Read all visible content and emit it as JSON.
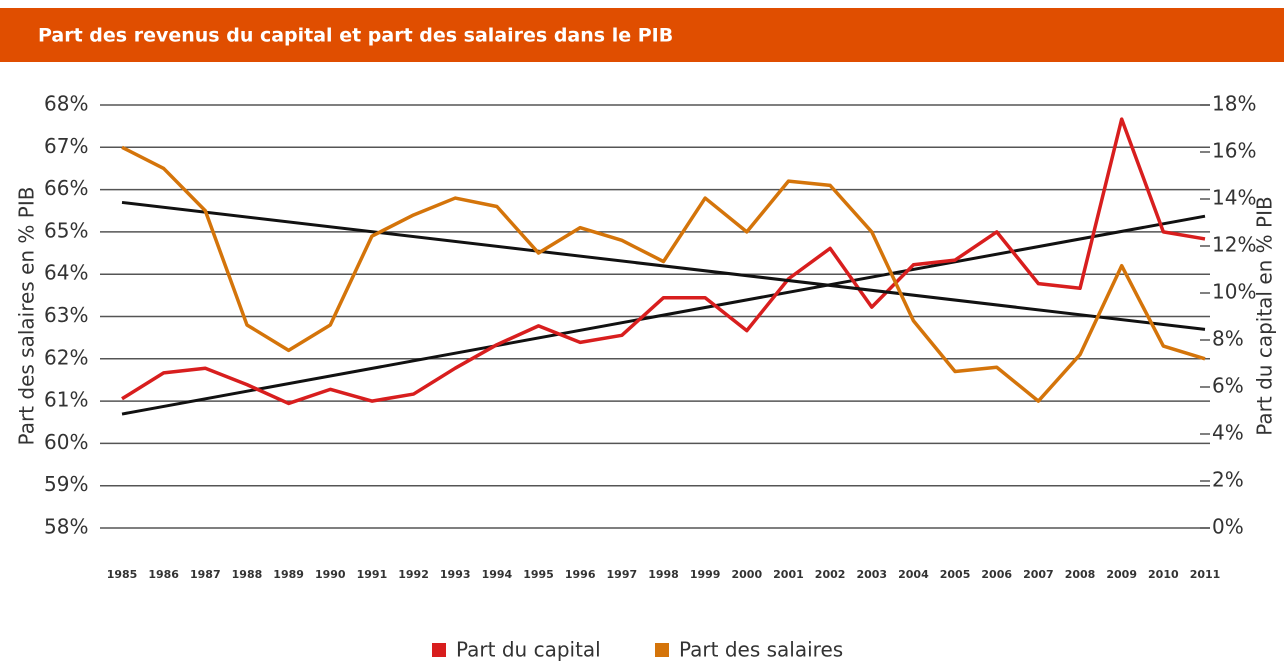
{
  "chart_data": {
    "type": "line",
    "title": "Part des revenus du capital et part des salaires dans le PIB",
    "ylabel": "Part des salaires en % PIB",
    "y2label": "Part du capital en % PIB",
    "categories": [
      "1985",
      "1986",
      "1987",
      "1988",
      "1989",
      "1990",
      "1991",
      "1992",
      "1993",
      "1994",
      "1995",
      "1996",
      "1997",
      "1998",
      "1999",
      "2000",
      "2001",
      "2002",
      "2003",
      "2004",
      "2005",
      "2006",
      "2007",
      "2008",
      "2009",
      "2010",
      "2011"
    ],
    "series": [
      {
        "name": "Part du capital",
        "color": "#d81e1e",
        "axis": "y2",
        "values": [
          5.5,
          6.6,
          6.8,
          6.1,
          5.3,
          5.9,
          5.4,
          5.7,
          6.8,
          7.8,
          8.6,
          7.9,
          8.2,
          9.8,
          9.8,
          8.4,
          10.6,
          11.9,
          9.4,
          11.2,
          11.4,
          12.6,
          10.4,
          10.2,
          17.4,
          12.6,
          12.3
        ]
      },
      {
        "name": "Part des salaires",
        "color": "#d4740a",
        "values": [
          67.0,
          66.5,
          65.5,
          62.8,
          62.2,
          62.8,
          64.9,
          65.4,
          65.8,
          65.6,
          64.5,
          65.1,
          64.8,
          64.3,
          65.8,
          65.0,
          66.2,
          66.1,
          65.0,
          62.9,
          61.7,
          61.8,
          61.0,
          62.1,
          64.2,
          62.3,
          62.0
        ]
      }
    ],
    "ylim": [
      58,
      68
    ],
    "yticks": [
      {
        "value": 58,
        "label": "58%"
      },
      {
        "value": 59,
        "label": "59%"
      },
      {
        "value": 60,
        "label": "60%"
      },
      {
        "value": 61,
        "label": "61%"
      },
      {
        "value": 62,
        "label": "62%"
      },
      {
        "value": 63,
        "label": "63%"
      },
      {
        "value": 64,
        "label": "64%"
      },
      {
        "value": 65,
        "label": "65%"
      },
      {
        "value": 66,
        "label": "66%"
      },
      {
        "value": 67,
        "label": "67%"
      },
      {
        "value": 68,
        "label": "68%"
      }
    ],
    "y2lim": [
      0,
      18
    ],
    "y2ticks": [
      {
        "value": 0,
        "label": "0%"
      },
      {
        "value": 2,
        "label": "2%"
      },
      {
        "value": 4,
        "label": "4%"
      },
      {
        "value": 6,
        "label": "6%"
      },
      {
        "value": 8,
        "label": "8%"
      },
      {
        "value": 10,
        "label": "10%"
      },
      {
        "value": 12,
        "label": "12%"
      },
      {
        "value": 14,
        "label": "14%"
      },
      {
        "value": 16,
        "label": "16%"
      },
      {
        "value": 18,
        "label": "18%"
      }
    ],
    "grid": true,
    "trendline": true,
    "legend": "bottom"
  }
}
